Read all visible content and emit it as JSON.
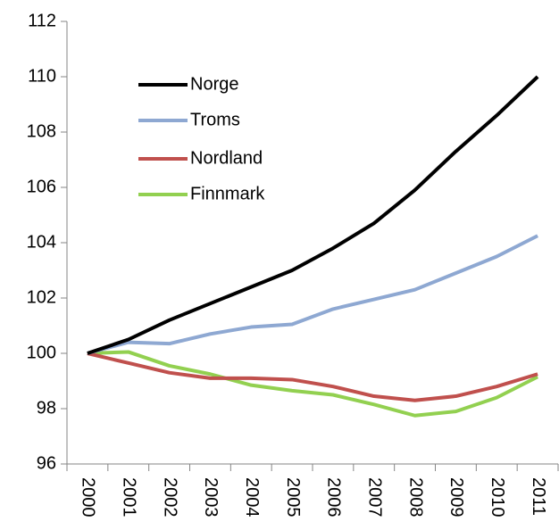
{
  "chart_data": {
    "type": "line",
    "categories": [
      "2000",
      "2001",
      "2002",
      "2003",
      "2004",
      "2005",
      "2006",
      "2007",
      "2008",
      "2009",
      "2010",
      "2011"
    ],
    "series": [
      {
        "name": "Norge",
        "color": "#000000",
        "values": [
          100,
          100.5,
          101.2,
          101.8,
          102.4,
          103.0,
          103.8,
          104.7,
          105.9,
          107.3,
          108.6,
          110.0
        ]
      },
      {
        "name": "Troms",
        "color": "#8ea8d2",
        "values": [
          100,
          100.4,
          100.35,
          100.7,
          100.95,
          101.05,
          101.6,
          101.95,
          102.3,
          102.9,
          103.5,
          104.25
        ]
      },
      {
        "name": "Nordland",
        "color": "#c0504d",
        "values": [
          100,
          99.65,
          99.3,
          99.1,
          99.1,
          99.05,
          98.8,
          98.45,
          98.3,
          98.45,
          98.8,
          99.25
        ]
      },
      {
        "name": "Finnmark",
        "color": "#92d050",
        "values": [
          100,
          100.05,
          99.55,
          99.25,
          98.85,
          98.65,
          98.5,
          98.15,
          97.75,
          97.9,
          98.4,
          99.15
        ]
      }
    ],
    "ylim": [
      96,
      112
    ],
    "yticks": [
      96,
      98,
      100,
      102,
      104,
      106,
      108,
      110,
      112
    ]
  }
}
